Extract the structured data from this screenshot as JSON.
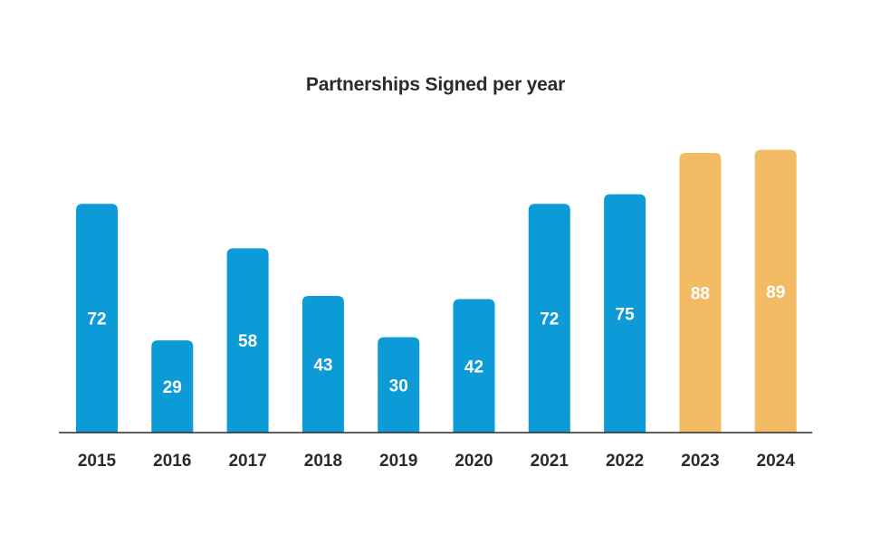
{
  "chart_data": {
    "type": "bar",
    "title": "Partnerships Signed per year",
    "xlabel": "",
    "ylabel": "",
    "categories": [
      "2015",
      "2016",
      "2017",
      "2018",
      "2019",
      "2020",
      "2021",
      "2022",
      "2023",
      "2024"
    ],
    "values": [
      72,
      29,
      58,
      43,
      30,
      42,
      72,
      75,
      88,
      89
    ],
    "data_labels": [
      "72",
      "29",
      "58",
      "43",
      "30",
      "42",
      "72",
      "75",
      "88",
      "89"
    ],
    "ylim": [
      0,
      92
    ],
    "grid": false,
    "legend": "none",
    "colors": {
      "actual": "#0d9bd8",
      "highlight": "#f3bb63",
      "axis": "#2b2b2b",
      "bar_label": "#ffffff"
    },
    "highlight_categories": [
      "2023",
      "2024"
    ]
  }
}
